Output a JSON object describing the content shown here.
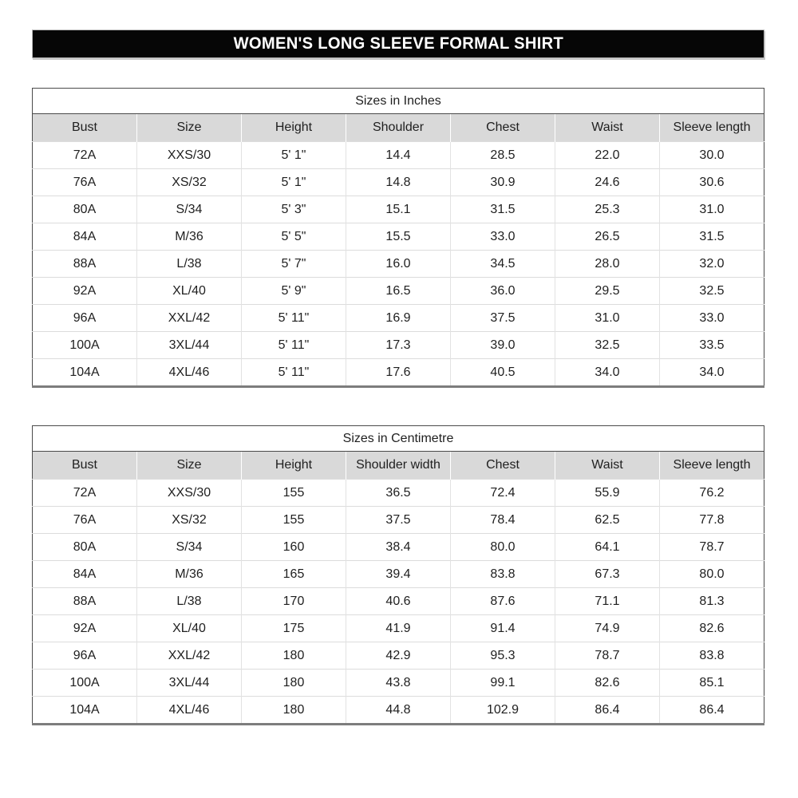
{
  "page": {
    "title": "WOMEN'S LONG SLEEVE FORMAL SHIRT"
  },
  "colors": {
    "banner_bg": "#000000",
    "banner_text": "#ffffff",
    "table_header_bg": "#d9d9d9",
    "table_border_dark": "#4a4a4a",
    "table_border_light": "#dcdcdc",
    "text": "#1f1f1f"
  },
  "tables": [
    {
      "title": "Sizes in Inches",
      "columns": [
        "Bust",
        "Size",
        "Height",
        "Shoulder",
        "Chest",
        "Waist",
        "Sleeve length"
      ],
      "rows": [
        [
          "72A",
          "XXS/30",
          "5' 1\"",
          "14.4",
          "28.5",
          "22.0",
          "30.0"
        ],
        [
          "76A",
          "XS/32",
          "5' 1\"",
          "14.8",
          "30.9",
          "24.6",
          "30.6"
        ],
        [
          "80A",
          "S/34",
          "5' 3\"",
          "15.1",
          "31.5",
          "25.3",
          "31.0"
        ],
        [
          "84A",
          "M/36",
          "5' 5\"",
          "15.5",
          "33.0",
          "26.5",
          "31.5"
        ],
        [
          "88A",
          "L/38",
          "5' 7\"",
          "16.0",
          "34.5",
          "28.0",
          "32.0"
        ],
        [
          "92A",
          "XL/40",
          "5' 9\"",
          "16.5",
          "36.0",
          "29.5",
          "32.5"
        ],
        [
          "96A",
          "XXL/42",
          "5' 11\"",
          "16.9",
          "37.5",
          "31.0",
          "33.0"
        ],
        [
          "100A",
          "3XL/44",
          "5' 11\"",
          "17.3",
          "39.0",
          "32.5",
          "33.5"
        ],
        [
          "104A",
          "4XL/46",
          "5' 11\"",
          "17.6",
          "40.5",
          "34.0",
          "34.0"
        ]
      ]
    },
    {
      "title": "Sizes in Centimetre",
      "columns": [
        "Bust",
        "Size",
        "Height",
        "Shoulder width",
        "Chest",
        "Waist",
        "Sleeve length"
      ],
      "rows": [
        [
          "72A",
          "XXS/30",
          "155",
          "36.5",
          "72.4",
          "55.9",
          "76.2"
        ],
        [
          "76A",
          "XS/32",
          "155",
          "37.5",
          "78.4",
          "62.5",
          "77.8"
        ],
        [
          "80A",
          "S/34",
          "160",
          "38.4",
          "80.0",
          "64.1",
          "78.7"
        ],
        [
          "84A",
          "M/36",
          "165",
          "39.4",
          "83.8",
          "67.3",
          "80.0"
        ],
        [
          "88A",
          "L/38",
          "170",
          "40.6",
          "87.6",
          "71.1",
          "81.3"
        ],
        [
          "92A",
          "XL/40",
          "175",
          "41.9",
          "91.4",
          "74.9",
          "82.6"
        ],
        [
          "96A",
          "XXL/42",
          "180",
          "42.9",
          "95.3",
          "78.7",
          "83.8"
        ],
        [
          "100A",
          "3XL/44",
          "180",
          "43.8",
          "99.1",
          "82.6",
          "85.1"
        ],
        [
          "104A",
          "4XL/46",
          "180",
          "44.8",
          "102.9",
          "86.4",
          "86.4"
        ]
      ]
    }
  ]
}
